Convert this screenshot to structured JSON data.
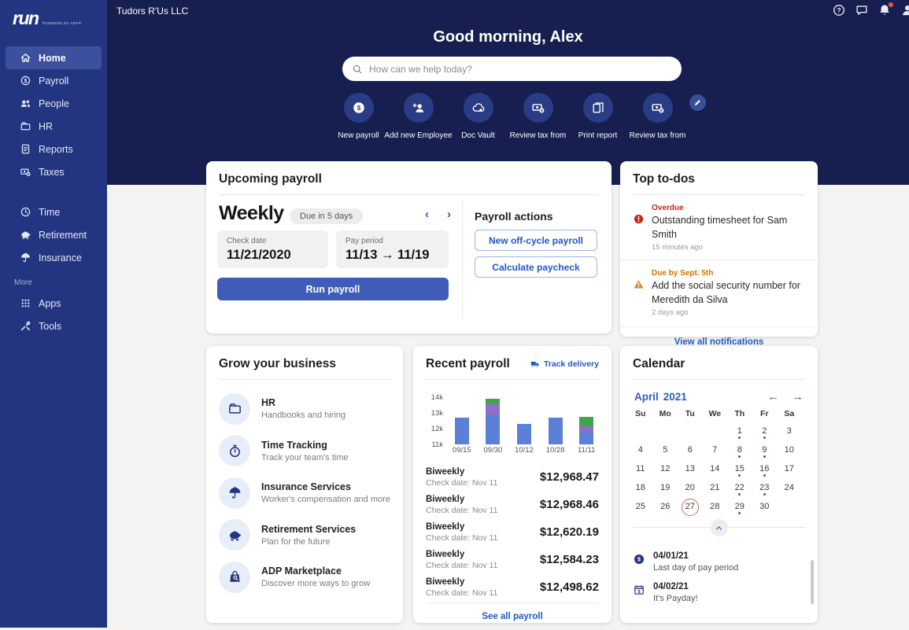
{
  "colors": {
    "sidebar_bg": "#233580",
    "hero_bg": "#161f4f",
    "active_nav": "#3d509e",
    "accent_link": "#2357c5",
    "run_button": "#3f5db8",
    "page_bg": "#f4f3f1",
    "overdue_red": "#c6281c",
    "warning_orange": "#c97600",
    "selected_day_ring": "#cf6a52"
  },
  "sidebar": {
    "logo": "run",
    "powered_by": "POWERED BY ADP®",
    "more_label": "More",
    "items": [
      {
        "label": "Home",
        "icon": "i-home",
        "name": "home",
        "section": 1,
        "active": true
      },
      {
        "label": "Payroll",
        "icon": "i-dollar",
        "name": "payroll",
        "section": 1,
        "active": false
      },
      {
        "label": "People",
        "icon": "i-people",
        "name": "people",
        "section": 1,
        "active": false
      },
      {
        "label": "HR",
        "icon": "i-hr",
        "name": "hr",
        "section": 1,
        "active": false
      },
      {
        "label": "Reports",
        "icon": "i-report",
        "name": "reports",
        "section": 1,
        "active": false
      },
      {
        "label": "Taxes",
        "icon": "i-taxes",
        "name": "taxes",
        "section": 1,
        "active": false
      },
      {
        "label": "Time",
        "icon": "i-clock",
        "name": "time",
        "section": 2,
        "active": false
      },
      {
        "label": "Retirement",
        "icon": "i-piggy",
        "name": "retirement",
        "section": 2,
        "active": false
      },
      {
        "label": "Insurance",
        "icon": "i-umbrella",
        "name": "insurance",
        "section": 2,
        "active": false
      },
      {
        "label": "Apps",
        "icon": "i-apps",
        "name": "apps",
        "section": 3,
        "active": false
      },
      {
        "label": "Tools",
        "icon": "i-tools",
        "name": "tools",
        "section": 3,
        "active": false
      }
    ]
  },
  "topbar": {
    "company": "Tudors R'Us LLC",
    "icons": [
      {
        "name": "help-icon",
        "icon": "i-help"
      },
      {
        "name": "chat-icon",
        "icon": "i-chat"
      },
      {
        "name": "bell-icon",
        "icon": "i-bell",
        "badge": true
      },
      {
        "name": "user-icon",
        "icon": "i-user"
      }
    ]
  },
  "hero": {
    "greeting": "Good morning, Alex",
    "search_placeholder": "How can we help today?",
    "shortcuts": [
      {
        "label": "New payroll",
        "icon": "i-dollar-fill",
        "name": "new-payroll"
      },
      {
        "label": "Add new Employee",
        "icon": "i-person-add",
        "name": "add-new-employee"
      },
      {
        "label": "Doc Vault",
        "icon": "i-cloud",
        "name": "doc-vault"
      },
      {
        "label": "Review tax from",
        "icon": "i-taxes",
        "name": "review-tax-form-1"
      },
      {
        "label": "Print report",
        "icon": "i-docs",
        "name": "print-report"
      },
      {
        "label": "Review tax from",
        "icon": "i-taxes",
        "name": "review-tax-form-2"
      }
    ]
  },
  "upcoming_payroll": {
    "title": "Upcoming payroll",
    "frequency": "Weekly",
    "due_badge": "Due in 5 days",
    "check_date_label": "Check date",
    "check_date": "11/21/2020",
    "pay_period_label": "Pay period",
    "pay_period": "11/13 → 11/19",
    "run_button": "Run payroll",
    "actions_title": "Payroll actions",
    "action_1": "New off-cycle payroll",
    "action_2": "Calculate paycheck"
  },
  "top_todos": {
    "title": "Top to-dos",
    "items": [
      {
        "tag": "Overdue",
        "severity": "overdue",
        "icon": "i-alert-circle",
        "text": "Outstanding timesheet for Sam Smith",
        "time": "15 minutes ago"
      },
      {
        "tag": "Due by Sept. 5th",
        "severity": "warning",
        "icon": "i-alert-triangle",
        "text": "Add the social security number for Meredith da Silva",
        "time": "2 days ago"
      }
    ],
    "link": "View all notifications"
  },
  "grow": {
    "title": "Grow your business",
    "items": [
      {
        "title": "HR",
        "subtitle": "Handbooks and hiring",
        "icon": "i-hr",
        "name": "hr"
      },
      {
        "title": "Time Tracking",
        "subtitle": "Track your team's time",
        "icon": "i-stopwatch",
        "name": "time-tracking"
      },
      {
        "title": "Insurance Services",
        "subtitle": "Worker's compensation and more",
        "icon": "i-umbrella",
        "name": "insurance-services"
      },
      {
        "title": "Retirement Services",
        "subtitle": "Plan for the future",
        "icon": "i-piggy",
        "name": "retirement-services"
      },
      {
        "title": "ADP Marketplace",
        "subtitle": "Discover more ways to grow",
        "icon": "i-bag",
        "name": "adp-marketplace"
      }
    ]
  },
  "recent_payroll": {
    "title": "Recent payroll",
    "track_link": "Track delivery",
    "rows": [
      {
        "frequency": "Biweekly",
        "check_date": "Check date: Nov 11",
        "amount": "$12,968.47"
      },
      {
        "frequency": "Biweekly",
        "check_date": "Check date: Nov 11",
        "amount": "$12,968.46"
      },
      {
        "frequency": "Biweekly",
        "check_date": "Check date: Nov 11",
        "amount": "$12,620.19"
      },
      {
        "frequency": "Biweekly",
        "check_date": "Check date: Nov 11",
        "amount": "$12,584.23"
      },
      {
        "frequency": "Biweekly",
        "check_date": "Check date: Nov 11",
        "amount": "$12,498.62"
      }
    ],
    "see_all": "See all payroll"
  },
  "chart_data": {
    "type": "bar",
    "stacked": true,
    "title": "Recent payroll",
    "categories": [
      "09/15",
      "09/30",
      "10/12",
      "10/28",
      "11/11"
    ],
    "series": [
      {
        "name": "segment-1",
        "color": "#5b80d6",
        "tops_k": [
          12.7,
          12.85,
          12.3,
          12.7,
          11.75
        ]
      },
      {
        "name": "segment-2",
        "color": "#8e6fc8",
        "tops_k": [
          null,
          13.6,
          null,
          null,
          12.15
        ]
      },
      {
        "name": "segment-3",
        "color": "#3fa548",
        "tops_k": [
          null,
          13.9,
          null,
          null,
          12.75
        ]
      }
    ],
    "baseline_k": 11,
    "ylim_k": [
      11,
      14.5
    ],
    "yticks": [
      {
        "value": 14,
        "label": "14k"
      },
      {
        "value": 13,
        "label": "13k"
      },
      {
        "value": 12,
        "label": "12k"
      },
      {
        "value": 11,
        "label": "11k"
      }
    ],
    "grid": false,
    "legend": "none"
  },
  "calendar": {
    "title": "Calendar",
    "month": "April",
    "year": "2021",
    "day_headers": [
      "Su",
      "Mo",
      "Tu",
      "We",
      "Th",
      "Fr",
      "Sa"
    ],
    "weeks": [
      [
        "",
        "",
        "",
        "",
        "1",
        "2",
        "3"
      ],
      [
        "4",
        "5",
        "6",
        "7",
        "8",
        "9",
        "10"
      ],
      [
        "11",
        "12",
        "13",
        "14",
        "15",
        "16",
        "17"
      ],
      [
        "18",
        "19",
        "20",
        "21",
        "22",
        "23",
        "24"
      ],
      [
        "25",
        "26",
        "27",
        "28",
        "29",
        "30",
        ""
      ]
    ],
    "dotted_days": [
      1,
      2,
      8,
      9,
      15,
      16,
      22,
      23,
      29
    ],
    "selected_day": 27,
    "events": [
      {
        "date": "04/01/21",
        "text": "Last day of pay period",
        "icon": "i-dollar-fill",
        "name": "last-day-of-pay-period"
      },
      {
        "date": "04/02/21",
        "text": "It's Payday!",
        "icon": "i-cal-dollar",
        "name": "payday"
      }
    ]
  }
}
